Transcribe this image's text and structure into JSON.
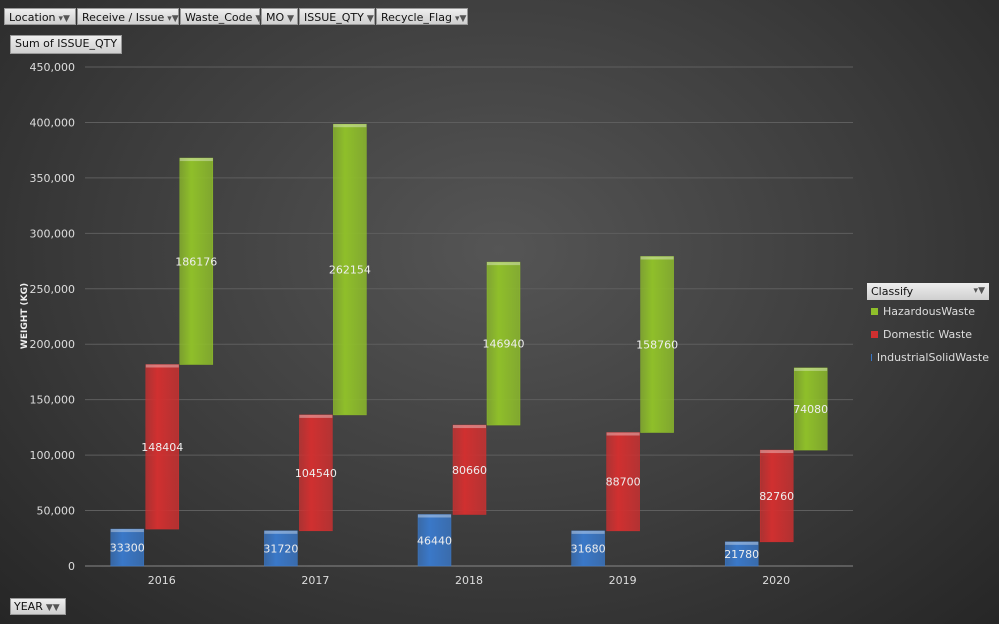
{
  "filters": [
    {
      "label": "Location",
      "icon": "dropdown-filter-icon"
    },
    {
      "label": "Receive / Issue",
      "icon": "dropdown-filter-icon"
    },
    {
      "label": "Waste_Code",
      "icon": "dropdown-icon"
    },
    {
      "label": "MO",
      "icon": "dropdown-icon"
    },
    {
      "label": "ISSUE_QTY",
      "icon": "dropdown-icon"
    },
    {
      "label": "Recycle_Flag",
      "icon": "dropdown-filter-icon"
    }
  ],
  "value_field": "Sum of ISSUE_QTY",
  "axis_field": "YEAR",
  "legend": {
    "title": "Classify"
  },
  "chart_data": {
    "type": "bar",
    "layout": "stacked-offset",
    "categories": [
      "2016",
      "2017",
      "2018",
      "2019",
      "2020"
    ],
    "series": [
      {
        "name": "HazardousWaste",
        "color": "#8fbf2a",
        "values": [
          186176,
          262154,
          146940,
          158760,
          74080
        ]
      },
      {
        "name": "Domestic Waste",
        "color": "#d03030",
        "values": [
          148404,
          104540,
          80660,
          88700,
          82760
        ]
      },
      {
        "name": "IndustrialSolidWaste",
        "color": "#3a78c8",
        "values": [
          33300,
          31720,
          46440,
          31680,
          21780
        ]
      }
    ],
    "ylabel": "WEIGHT (KG)",
    "xlabel": "",
    "ylim": [
      0,
      450000
    ],
    "yticks": [
      "0",
      "50,000",
      "100,000",
      "150,000",
      "200,000",
      "250,000",
      "300,000",
      "350,000",
      "400,000",
      "450,000"
    ],
    "grid": true,
    "legend_position": "right"
  }
}
